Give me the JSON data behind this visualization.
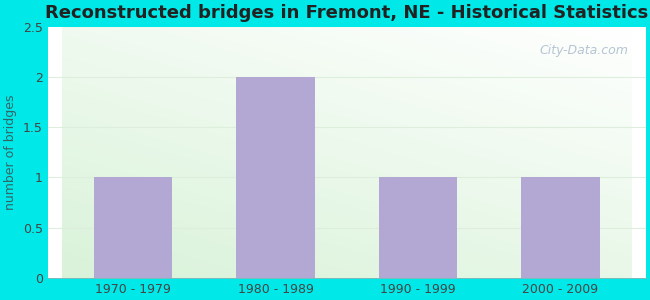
{
  "title": "Reconstructed bridges in Fremont, NE - Historical Statistics",
  "categories": [
    "1970 - 1979",
    "1980 - 1989",
    "1990 - 1999",
    "2000 - 2009"
  ],
  "values": [
    1,
    2,
    1,
    1
  ],
  "bar_color": "#b3a8d4",
  "ylabel": "number of bridges",
  "ylim": [
    0,
    2.5
  ],
  "yticks": [
    0,
    0.5,
    1,
    1.5,
    2,
    2.5
  ],
  "background_color": "#00e8e8",
  "title_fontsize": 13,
  "axis_label_fontsize": 9,
  "tick_fontsize": 9,
  "watermark": "City-Data.com",
  "bar_width": 0.55,
  "grid_color": "#ddeedc",
  "ylabel_color": "#336666"
}
